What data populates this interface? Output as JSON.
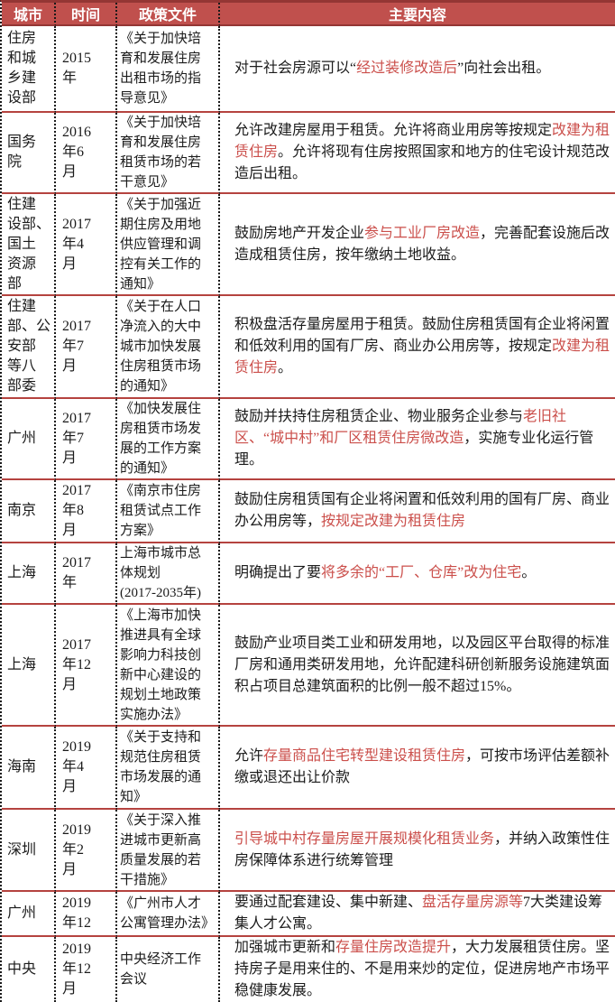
{
  "colors": {
    "header_background": "#c0504d",
    "header_text": "#ffffff",
    "top_border": "#943634",
    "row_separator": "#b5433f",
    "highlight_text": "#cb4f4b",
    "body_text": "#1b1b1b",
    "column_separator": "#1a1a1a"
  },
  "table": {
    "headers": [
      "城市",
      "时间",
      "政策文件",
      "主要内容"
    ],
    "rows": [
      {
        "city": "住房\n和城\n乡建\n设部",
        "time": "2015\n年",
        "doc": "《关于加快培\n育和发展住房\n出租市场的指\n导意见》",
        "content": [
          {
            "text": "对于社会房源可以“",
            "highlight": false
          },
          {
            "text": "经过装修改造后",
            "highlight": true
          },
          {
            "text": "”向社会出租。",
            "highlight": false
          }
        ]
      },
      {
        "city": "国务\n院",
        "time": "2016\n年6\n月",
        "doc": "《关于加快培\n育和发展住房\n租赁市场的若\n干意见》",
        "content": [
          {
            "text": "允许改建房屋用于租赁。允许将商业用房等按规定",
            "highlight": false
          },
          {
            "text": "改建为租赁住房",
            "highlight": true
          },
          {
            "text": "。允许将现有住房按照国家和地方的住宅设计规范改造后出租。",
            "highlight": false
          }
        ]
      },
      {
        "city": "住建\n设部、\n国土\n资源\n部",
        "time": "2017\n年4\n月",
        "doc": "《关于加强近\n期住房及用地\n供应管理和调\n控有关工作的\n通知》",
        "content": [
          {
            "text": "鼓励房地产开发企业",
            "highlight": false
          },
          {
            "text": "参与工业厂房改造",
            "highlight": true
          },
          {
            "text": "，完善配套设施后改造成租赁住房，按年缴纳土地收益。",
            "highlight": false
          }
        ]
      },
      {
        "city": "住建\n部、公\n安部\n等八\n部委",
        "time": "2017\n年7\n月",
        "doc": "《关于在人口\n净流入的大中\n城市加快发展\n住房租赁市场\n的通知》",
        "content": [
          {
            "text": "积极盘活存量房屋用于租赁。鼓励住房租赁国有企业将闲置和低效利用的国有厂房、商业办公用房等，按规定",
            "highlight": false
          },
          {
            "text": "改建为租赁住房",
            "highlight": true
          },
          {
            "text": "。",
            "highlight": false
          }
        ]
      },
      {
        "city": "广州",
        "time": "2017\n年7\n月",
        "doc": "《加快发展住\n房租赁市场发\n展的工作方案\n的通知》",
        "content": [
          {
            "text": "鼓励并扶持住房租赁企业、物业服务企业参与",
            "highlight": false
          },
          {
            "text": "老旧社区、“城中村”和厂区租赁住房微改造",
            "highlight": true
          },
          {
            "text": "，实施专业化运行管理。",
            "highlight": false
          }
        ]
      },
      {
        "city": "南京",
        "time": "2017\n年8\n月",
        "doc": "《南京市住房\n租赁试点工作\n方案》",
        "content": [
          {
            "text": "鼓励住房租赁国有企业将闲置和低效利用的国有厂房、商业办公用房等，",
            "highlight": false
          },
          {
            "text": "按规定改建为租赁住房",
            "highlight": true
          }
        ]
      },
      {
        "city": "上海",
        "time": "2017\n年",
        "doc": "上海市城市总\n体规划\n(2017-2035年)",
        "content": [
          {
            "text": "明确提出了要",
            "highlight": false
          },
          {
            "text": "将多余的“工厂、仓库”改为住宅",
            "highlight": true
          },
          {
            "text": "。",
            "highlight": false
          }
        ]
      },
      {
        "city": "上海",
        "time": "2017\n年12\n月",
        "doc": "《上海市加快\n推进具有全球\n影响力科技创\n新中心建设的\n规划土地政策\n实施办法》",
        "content": [
          {
            "text": "鼓励产业项目类工业和研发用地，以及园区平台取得的标准厂房和通用类研发用地，允许配建科研创新服务设施建筑面积占项目总建筑面积的比例一般不超过15%。",
            "highlight": false
          }
        ]
      },
      {
        "city": "海南",
        "time": "2019\n年4\n月",
        "doc": "《关于支持和\n规范住房租赁\n市场发展的通\n知》",
        "content": [
          {
            "text": "允许",
            "highlight": false
          },
          {
            "text": "存量商品住宅转型建设租赁住房",
            "highlight": true
          },
          {
            "text": "，可按市场评估差额补缴或退还出让价款",
            "highlight": false
          }
        ]
      },
      {
        "city": "深圳",
        "time": "2019\n年2\n月",
        "doc": "《关于深入推\n进城市更新高\n质量发展的若\n干措施》",
        "content": [
          {
            "text": "引导城中村存量房屋开展规模化租赁业务",
            "highlight": true
          },
          {
            "text": "，并纳入政策性住房保障体系进行统筹管理",
            "highlight": false
          }
        ]
      },
      {
        "city": "广州",
        "time": "2019\n年12",
        "doc": "《广州市人才\n公寓管理办法》",
        "content": [
          {
            "text": "要通过配套建设、集中新建、",
            "highlight": false
          },
          {
            "text": "盘活存量房源等",
            "highlight": true
          },
          {
            "text": "7大类建设筹集人才公寓。",
            "highlight": false
          }
        ]
      },
      {
        "city": "中央",
        "time": "2019\n年12\n月",
        "doc": "中央经济工作\n会议",
        "content": [
          {
            "text": "加强城市更新和",
            "highlight": false
          },
          {
            "text": "存量住房改造提升",
            "highlight": true
          },
          {
            "text": "，大力发展租赁住房。坚持房子是用来住的、不是用来炒的定位，促进房地产市场平稳健康发展。",
            "highlight": false
          }
        ]
      }
    ]
  }
}
